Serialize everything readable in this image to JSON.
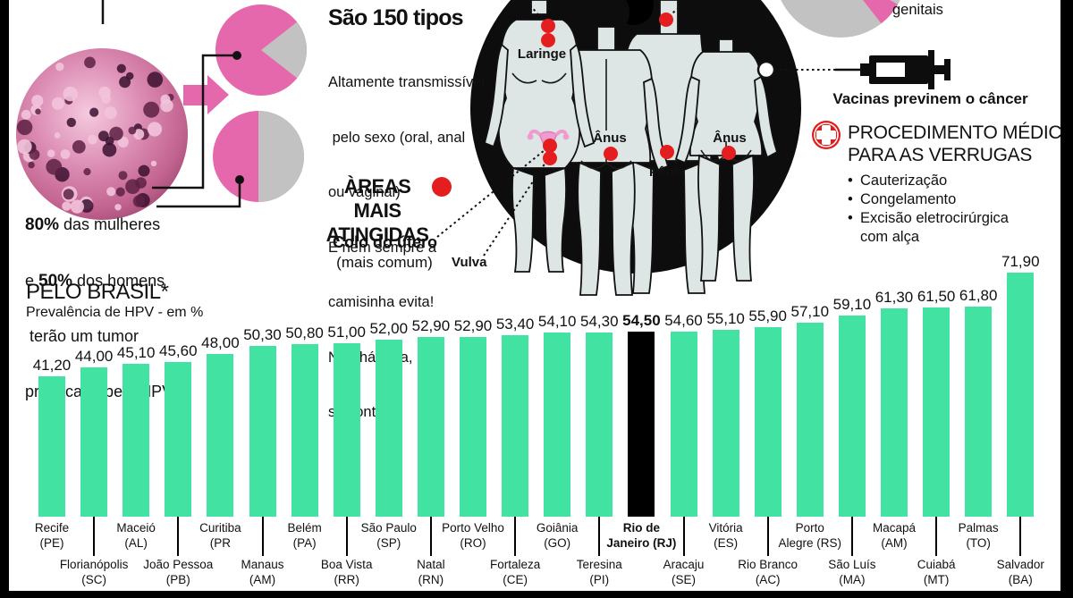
{
  "palette": {
    "pink": "#e468ab",
    "gray_pie": "#c2c2c2",
    "red_dot": "#e41e1e",
    "bar_green": "#42e3a2",
    "highlight_black": "#000000",
    "body_gray": "#dde6e4",
    "frame_black": "#000000"
  },
  "virus_section": {
    "line1_bold": "80%",
    "line1_rest": " das mulheres",
    "line2_pre": "e ",
    "line2_bold": "50%",
    "line2_rest": " dos homens",
    "line3": " terão um tumor",
    "line4": "provocado pelo HPV"
  },
  "types_section": {
    "title": "São 150 tipos",
    "lines": [
      "Altamente transmissível",
      " pelo sexo (oral, anal",
      "ou vaginal)",
      "E nem sempre a",
      "camisinha evita!",
      "Não há cura,",
      "só controle"
    ]
  },
  "areas_section": {
    "heading_line1": "ÀREAS MAIS",
    "heading_line2": "ATINGIDAS",
    "label_colo": "Colo do útero",
    "label_colo_sub": "(mais comum)",
    "label_vulva": "Vulva",
    "body_labels": {
      "laringe": "Laringe",
      "anus_left": "Ânus",
      "penis": "Pênis",
      "anus_right": "Ânus"
    }
  },
  "genitais_label": "genitais",
  "vaccine": {
    "caption": "Vacinas previnem o câncer"
  },
  "procedure": {
    "title_line1": "PROCEDIMENTO MÉDICO",
    "title_line2": "PARA AS VERRUGAS",
    "items": [
      "Cauterização",
      "Congelamento",
      "Excisão eletrocirúrgica com alça"
    ]
  },
  "chart_data": {
    "type": "bar",
    "title": "PELO BRASIL*",
    "subtitle": "Prevalência de HPV - em %",
    "ylim": [
      0,
      80
    ],
    "grid": false,
    "bar_color": "#42e3a2",
    "highlight_color": "#000000",
    "highlight_index": 14,
    "values": [
      41.2,
      44.0,
      45.1,
      45.6,
      48.0,
      50.3,
      50.8,
      51.0,
      52.0,
      52.9,
      52.9,
      53.4,
      54.1,
      54.3,
      54.5,
      54.6,
      55.1,
      55.9,
      57.1,
      59.1,
      61.3,
      61.5,
      61.8,
      71.9
    ],
    "value_labels": [
      "41,20",
      "44,00",
      "45,10",
      "45,60",
      "48,00",
      "50,30",
      "50,80",
      "51,00",
      "52,00",
      "52,90",
      "52,90",
      "53,40",
      "54,10",
      "54,30",
      "54,50",
      "54,60",
      "55,10",
      "55,90",
      "57,10",
      "59,10",
      "61,30",
      "61,50",
      "61,80",
      "71,90"
    ],
    "labels": [
      [
        "Recife",
        "(PE)"
      ],
      [
        "Florianópolis",
        "(SC)"
      ],
      [
        "Maceió",
        "(AL)"
      ],
      [
        "João Pessoa",
        "(PB)"
      ],
      [
        "Curitiba",
        "(PR"
      ],
      [
        "Manaus",
        "(AM)"
      ],
      [
        "Belém",
        "(PA)"
      ],
      [
        "Boa Vista",
        "(RR)"
      ],
      [
        "São Paulo",
        "(SP)"
      ],
      [
        "Natal",
        "(RN)"
      ],
      [
        "Porto Velho",
        "(RO)"
      ],
      [
        "Fortaleza",
        "(CE)"
      ],
      [
        "Goiânia",
        "(GO)"
      ],
      [
        "Teresina",
        "(PI)"
      ],
      [
        "Rio de",
        "Janeiro (RJ)"
      ],
      [
        "Aracaju",
        "(SE)"
      ],
      [
        "Vitória",
        "(ES)"
      ],
      [
        "Rio Branco",
        "(AC)"
      ],
      [
        "Porto",
        "Alegre (RS)"
      ],
      [
        "São Luís",
        "(MA)"
      ],
      [
        "Macapá",
        "(AM)"
      ],
      [
        "Cuiabá",
        "(MT)"
      ],
      [
        "Palmas",
        "(TO)"
      ],
      [
        "Salvador",
        "(BA)"
      ]
    ]
  }
}
